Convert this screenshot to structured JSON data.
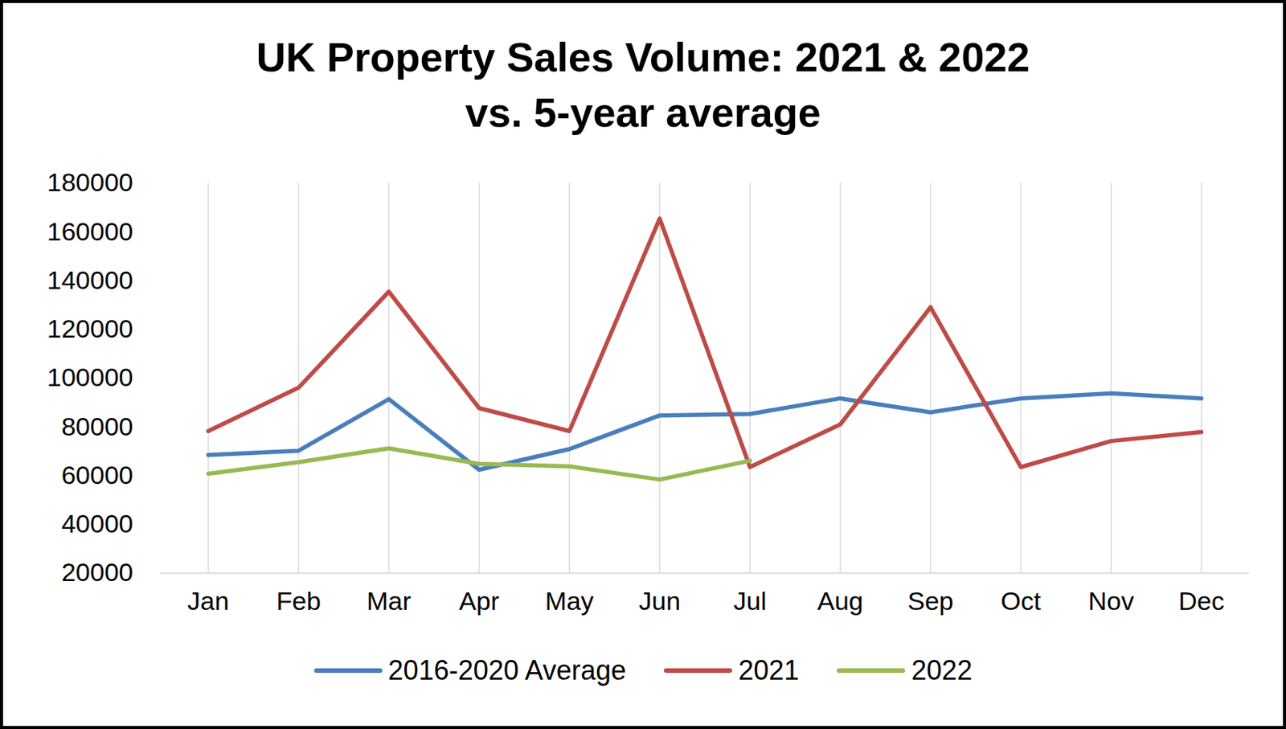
{
  "chart_data": {
    "type": "line",
    "title": "UK Property Sales Volume: 2021 & 2022\nvs. 5-year average",
    "categories": [
      "Jan",
      "Feb",
      "Mar",
      "Apr",
      "May",
      "Jun",
      "Jul",
      "Aug",
      "Sep",
      "Oct",
      "Nov",
      "Dec"
    ],
    "series": [
      {
        "name": "2016-2020 Average",
        "color": "#4a7ebb",
        "values": [
          68500,
          70200,
          91400,
          62400,
          70900,
          84700,
          85300,
          91700,
          86000,
          91700,
          93800,
          91700
        ]
      },
      {
        "name": "2021",
        "color": "#be4b48",
        "values": [
          78300,
          96100,
          135500,
          87700,
          78300,
          165500,
          63500,
          81000,
          129100,
          63500,
          74200,
          77900
        ]
      },
      {
        "name": "2022",
        "color": "#98b954",
        "values": [
          60800,
          65500,
          71200,
          64800,
          63800,
          58400,
          66100,
          null,
          null,
          null,
          null,
          null
        ]
      }
    ],
    "ylim": [
      20000,
      180000
    ],
    "yticks": [
      20000,
      40000,
      60000,
      80000,
      100000,
      120000,
      140000,
      160000,
      180000
    ],
    "grid": "x",
    "legend": "bottom"
  }
}
